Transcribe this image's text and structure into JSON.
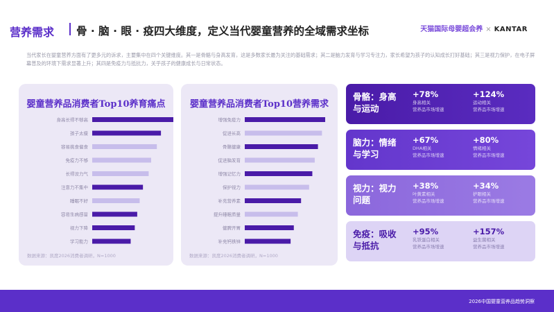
{
  "header": {
    "section_tag": "营养需求",
    "title": "骨 · 脑 · 眼 · 疫四大维度，定义当代婴童营养的全域需求坐标",
    "brand_primary": "天猫国际母婴超会养",
    "brand_separator": "×",
    "brand_secondary": "KANTAR"
  },
  "intro": "当代家长在婴童营养方面有了更多元的诉求，主要集中在四个关键维度。其一是骨骼与身高发育，这是多数家长最为关注的基础需求；其二是脑力发育与学习专注力，家长希望为孩子的认知成长打好基础；其三是视力保护，在电子屏幕普及的环境下需求显著上升；其四是免疫力与抵抗力，关乎孩子的健康成长与日常状态。",
  "colors": {
    "accent": "#5b2fc9",
    "bar_strong": "#4a1ba8",
    "bar_light": "#c7bdeb",
    "panel_bg": "#ece8f6"
  },
  "chart_data": [
    {
      "type": "bar",
      "orientation": "horizontal",
      "title": "婴童营养品消费者Top10养育痛点",
      "categories": [
        "身高长得不够高",
        "孩子太瘦",
        "容易挑食偏食",
        "免疫力不够",
        "长得没力气",
        "注意力不集中",
        "睡眠不好",
        "容易生病感冒",
        "视力下降",
        "学习能力"
      ],
      "values": [
        100,
        84,
        79,
        72,
        69,
        62,
        58,
        55,
        52,
        47
      ],
      "highlight": [
        true,
        true,
        false,
        false,
        false,
        true,
        false,
        true,
        true,
        true
      ],
      "note": "数据来源：凯度2026消费者调研，N=1000"
    },
    {
      "type": "bar",
      "orientation": "horizontal",
      "title": "婴童营养品消费者Top10营养需求",
      "categories": [
        "增强免疫力",
        "促进长高",
        "骨骼健康",
        "促进脑发育",
        "增强记忆力",
        "保护视力",
        "补充营养素",
        "提升睡眠质量",
        "健脾开胃",
        "补充钙铁锌"
      ],
      "values": [
        100,
        96,
        91,
        87,
        84,
        80,
        70,
        66,
        61,
        57
      ],
      "highlight": [
        true,
        false,
        true,
        false,
        true,
        false,
        true,
        false,
        true,
        true
      ],
      "note": "数据来源：凯度2026消费者调研，N=1000"
    }
  ],
  "cards": [
    {
      "title": "骨骼：身高与运动",
      "stats": [
        {
          "value": "+78%",
          "line1": "身高相关",
          "line2": "营养品市场增速"
        },
        {
          "value": "+124%",
          "line1": "运动相关",
          "line2": "营养品市场增速"
        }
      ]
    },
    {
      "title": "脑力：情绪与学习",
      "stats": [
        {
          "value": "+67%",
          "line1": "DHA相关",
          "line2": "营养品市场增速"
        },
        {
          "value": "+80%",
          "line1": "情绪相关",
          "line2": "营养品市场增速"
        }
      ]
    },
    {
      "title": "视力：视力问题",
      "stats": [
        {
          "value": "+38%",
          "line1": "叶黄素相关",
          "line2": "营养品市场增速"
        },
        {
          "value": "+34%",
          "line1": "护眼相关",
          "line2": "营养品市场增速"
        }
      ]
    },
    {
      "title": "免疫：吸收与抵抗",
      "stats": [
        {
          "value": "+95%",
          "line1": "乳铁蛋白相关",
          "line2": "营养品市场增速"
        },
        {
          "value": "+157%",
          "line1": "益生菌相关",
          "line2": "营养品市场增速"
        }
      ]
    }
  ],
  "footer": {
    "text": "2026中国婴童营养品趋势洞察"
  }
}
